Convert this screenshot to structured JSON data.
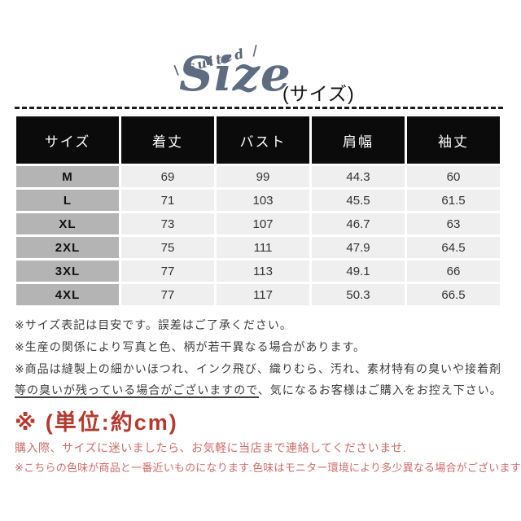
{
  "header": {
    "script_word": "\\ suited /",
    "logo_text": "Size",
    "subtitle": "(サイズ)"
  },
  "table": {
    "columns": [
      "サイズ",
      "着丈",
      "バスト",
      "肩幅",
      "袖丈"
    ],
    "rows": [
      {
        "size": "M",
        "values": [
          "69",
          "99",
          "44.3",
          "60"
        ]
      },
      {
        "size": "L",
        "values": [
          "71",
          "103",
          "45.5",
          "61.5"
        ]
      },
      {
        "size": "XL",
        "values": [
          "73",
          "107",
          "46.7",
          "63"
        ]
      },
      {
        "size": "2XL",
        "values": [
          "75",
          "111",
          "47.9",
          "64.5"
        ]
      },
      {
        "size": "3XL",
        "values": [
          "77",
          "113",
          "49.1",
          "66"
        ]
      },
      {
        "size": "4XL",
        "values": [
          "77",
          "117",
          "50.3",
          "66.5"
        ]
      }
    ]
  },
  "notes": [
    "※サイズ表記は目安です。誤差はご了承ください。",
    "※生産の関係により写真と色、柄が若干異なる場合があります。",
    "※商品は縫製上の細かいほつれ、インク飛び、織りむら、汚れ、素材特有の臭いや接着剤等の臭いが残っている場合がございますので、気になるお客様はご購入をお控え下さい。"
  ],
  "unit_note": "※ (単位:約cm)",
  "pink_notes": [
    "購入際、サイズに迷いましたら、お気軽に当店まで連絡してくださいませ.",
    "※こちらの色味が商品と一番近いものになります.色味はモニター環境により多少異なる場合がございます"
  ],
  "colors": {
    "logo_slate": "#5d6c80",
    "table_header_bg": "#0b0b0b",
    "size_column_bg": "#b4b4b4",
    "data_cell_bg": "#efefef",
    "red_heading": "#b5392e",
    "pink_note": "#ce6d68"
  }
}
